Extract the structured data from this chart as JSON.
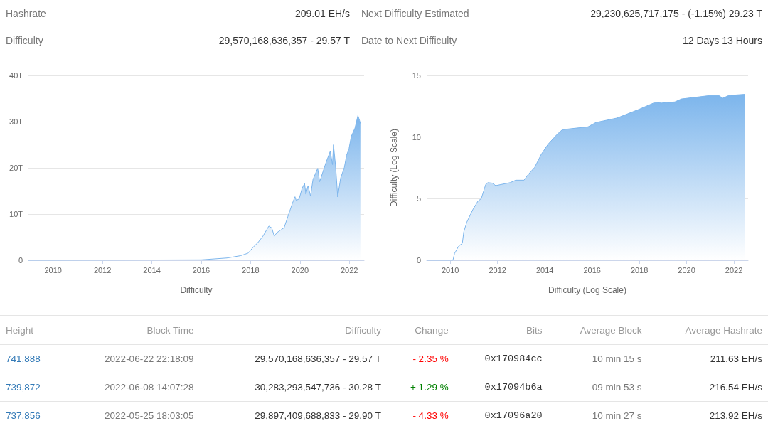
{
  "chart_data": [
    {
      "type": "other",
      "annotations": [
        "Hashrate",
        "209.01 EH/s",
        "Next Difficulty Estimated",
        "29,230,625,717,175 - (-1.15%) 29.23 T",
        "Difficulty",
        "29,570,168,636,357 - 29.57 T",
        "Date to Next Difficulty",
        "12 Days 13 Hours"
      ]
    },
    {
      "type": "area",
      "xlabel": "Difficulty",
      "color": "#7cb5ec",
      "grid": "y",
      "xlim": [
        2009,
        2022.6
      ],
      "xticks": [
        2010,
        2012,
        2014,
        2016,
        2018,
        2020,
        2022
      ],
      "ylim": [
        0,
        40
      ],
      "yticks": [
        0,
        {
          "value": 10,
          "label": "10T"
        },
        {
          "value": 20,
          "label": "20T"
        },
        {
          "value": 30,
          "label": "30T"
        },
        {
          "value": 40,
          "label": "40T"
        }
      ],
      "x": [
        2009,
        2016.0,
        2017.04,
        2017.6,
        2017.9,
        2018.1,
        2018.3,
        2018.5,
        2018.74,
        2018.86,
        2018.96,
        2019.07,
        2019.36,
        2019.51,
        2019.7,
        2019.8,
        2019.85,
        2019.97,
        2020.09,
        2020.19,
        2020.24,
        2020.33,
        2020.43,
        2020.53,
        2020.72,
        2020.8,
        2020.93,
        2021.06,
        2021.23,
        2021.32,
        2021.36,
        2021.45,
        2021.53,
        2021.65,
        2021.8,
        2021.89,
        2021.99,
        2022.08,
        2022.23,
        2022.35,
        2022.42,
        2022.45
      ],
      "values": [
        0,
        0.1,
        0.5,
        1.0,
        1.55,
        2.8,
        3.85,
        5.2,
        7.4,
        7.0,
        5.2,
        6.0,
        7.05,
        9.45,
        12.4,
        13.75,
        12.95,
        13.3,
        15.6,
        16.6,
        14.3,
        16.15,
        13.9,
        17.5,
        19.9,
        17.0,
        19.1,
        21.2,
        23.6,
        20.7,
        25.0,
        20.1,
        13.7,
        17.8,
        20.1,
        22.7,
        24.2,
        26.8,
        28.6,
        31.3,
        30.2,
        29.57
      ]
    },
    {
      "type": "area",
      "xlabel": "Difficulty (Log Scale)",
      "ylabel": "Difficulty (Log Scale)",
      "color": "#7cb5ec",
      "grid": "y",
      "xlim": [
        2009,
        2022.6
      ],
      "xticks": [
        2010,
        2012,
        2014,
        2016,
        2018,
        2020,
        2022
      ],
      "ylim": [
        0,
        15
      ],
      "yticks": [
        0,
        5,
        10,
        15
      ],
      "x": [
        2009.0,
        2010.11,
        2010.18,
        2010.35,
        2010.51,
        2010.57,
        2010.7,
        2010.95,
        2011.17,
        2011.31,
        2011.5,
        2011.59,
        2011.78,
        2011.92,
        2012.53,
        2012.77,
        2013.12,
        2013.29,
        2013.57,
        2013.85,
        2014.13,
        2014.51,
        2014.74,
        2015.83,
        2016.16,
        2017.05,
        2018.0,
        2018.65,
        2018.94,
        2019.5,
        2019.78,
        2020.91,
        2021.38,
        2021.52,
        2021.76,
        2022.04,
        2022.48
      ],
      "values": [
        0,
        0,
        0.55,
        1.14,
        1.38,
        2.3,
        3.1,
        4.1,
        4.8,
        5.0,
        6.16,
        6.3,
        6.26,
        6.06,
        6.3,
        6.5,
        6.5,
        6.95,
        7.54,
        8.6,
        9.4,
        10.2,
        10.6,
        10.83,
        11.18,
        11.54,
        12.26,
        12.8,
        12.76,
        12.85,
        13.09,
        13.35,
        13.35,
        13.15,
        13.35,
        13.41,
        13.47
      ]
    },
    {
      "type": "other",
      "categories": [
        "Height",
        "Block Time",
        "Difficulty",
        "Change",
        "Bits",
        "Average Block",
        "Average Hashrate"
      ],
      "annotations": [
        "741,888",
        "2022-06-22 22:18:09",
        "29,570,168,636,357 - 29.57 T",
        "- 2.35 %",
        "0x170984cc",
        "10 min 15 s",
        "211.63 EH/s",
        "739,872",
        "2022-06-08 14:07:28",
        "30,283,293,547,736 - 30.28 T",
        "+ 1.29 %",
        "0x17094b6a",
        "09 min 53 s",
        "216.54 EH/s",
        "737,856",
        "2022-05-25 18:03:05",
        "29,897,409,688,833 - 29.90 T",
        "- 4.33 %",
        "0x17096a20",
        "10 min 27 s",
        "213.92 EH/s"
      ],
      "colors": [
        "#337ab7",
        "#777777",
        "#333333",
        "#ff0000",
        "#333333",
        "#777777",
        "#333333",
        "#337ab7",
        "#777777",
        "#333333",
        "#008000",
        "#333333",
        "#777777",
        "#333333",
        "#337ab7",
        "#777777",
        "#333333",
        "#ff0000",
        "#333333",
        "#777777",
        "#333333"
      ]
    }
  ]
}
